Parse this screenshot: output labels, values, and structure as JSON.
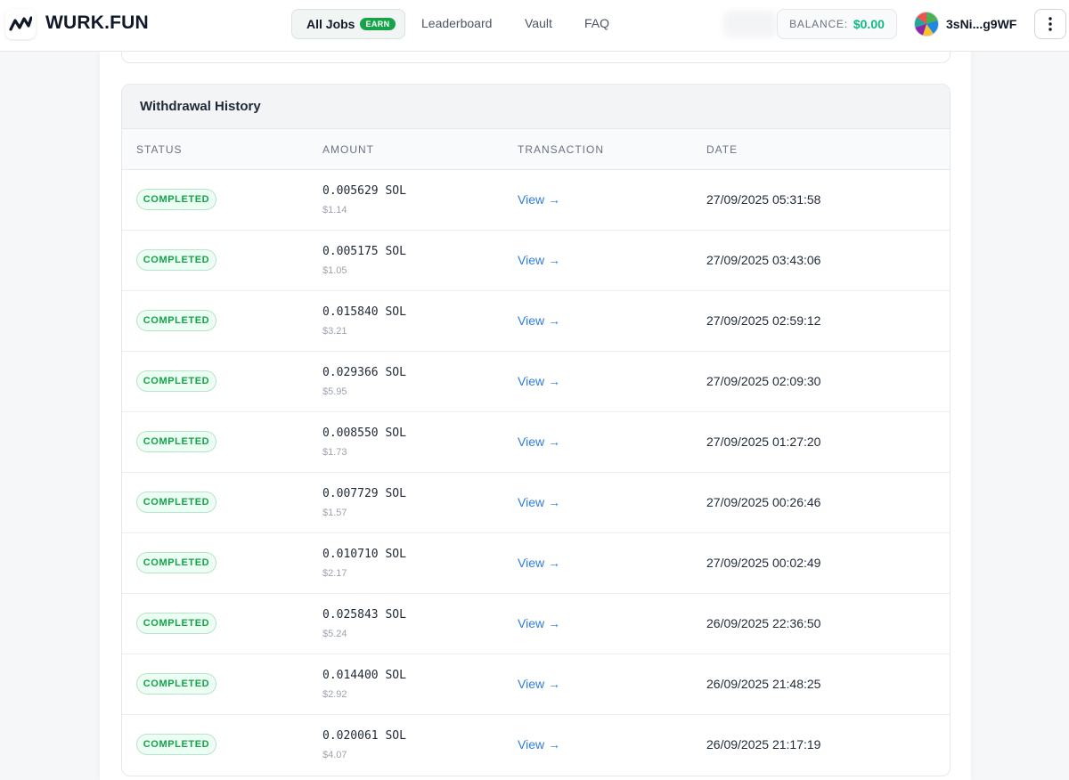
{
  "header": {
    "logo_text": "WURK.FUN",
    "nav": {
      "all_jobs": "All Jobs",
      "earn_badge": "EARN",
      "leaderboard": "Leaderboard",
      "vault": "Vault",
      "faq": "FAQ"
    },
    "balance_label": "BALANCE:",
    "balance_value": "$0.00",
    "user_name": "3sNi...g9WF"
  },
  "withdrawal_history": {
    "title": "Withdrawal History",
    "columns": [
      "STATUS",
      "AMOUNT",
      "TRANSACTION",
      "DATE"
    ],
    "rows": [
      {
        "status": "COMPLETED",
        "amount": "0.005629 SOL",
        "usd": "$1.14",
        "transaction": "View →",
        "date": "27/09/2025 05:31:58"
      },
      {
        "status": "COMPLETED",
        "amount": "0.005175 SOL",
        "usd": "$1.05",
        "transaction": "View →",
        "date": "27/09/2025 03:43:06"
      },
      {
        "status": "COMPLETED",
        "amount": "0.015840 SOL",
        "usd": "$3.21",
        "transaction": "View →",
        "date": "27/09/2025 02:59:12"
      },
      {
        "status": "COMPLETED",
        "amount": "0.029366 SOL",
        "usd": "$5.95",
        "transaction": "View →",
        "date": "27/09/2025 02:09:30"
      },
      {
        "status": "COMPLETED",
        "amount": "0.008550 SOL",
        "usd": "$1.73",
        "transaction": "View →",
        "date": "27/09/2025 01:27:20"
      },
      {
        "status": "COMPLETED",
        "amount": "0.007729 SOL",
        "usd": "$1.57",
        "transaction": "View →",
        "date": "27/09/2025 00:26:46"
      },
      {
        "status": "COMPLETED",
        "amount": "0.010710 SOL",
        "usd": "$2.17",
        "transaction": "View →",
        "date": "27/09/2025 00:02:49"
      },
      {
        "status": "COMPLETED",
        "amount": "0.025843 SOL",
        "usd": "$5.24",
        "transaction": "View →",
        "date": "26/09/2025 22:36:50"
      },
      {
        "status": "COMPLETED",
        "amount": "0.014400 SOL",
        "usd": "$2.92",
        "transaction": "View →",
        "date": "26/09/2025 21:48:25"
      },
      {
        "status": "COMPLETED",
        "amount": "0.020061 SOL",
        "usd": "$4.07",
        "transaction": "View →",
        "date": "26/09/2025 21:17:19"
      }
    ]
  },
  "colors": {
    "accent_green": "#10b981",
    "badge_green": "#15a34a",
    "link_blue": "#2f7de1"
  },
  "icons": {
    "logo": "wurk-logo-icon",
    "menu": "more-vertical-icon",
    "avatar": "user-avatar"
  }
}
